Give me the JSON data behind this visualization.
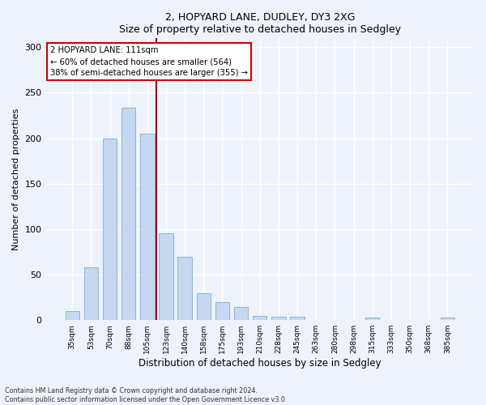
{
  "title1": "2, HOPYARD LANE, DUDLEY, DY3 2XG",
  "title2": "Size of property relative to detached houses in Sedgley",
  "xlabel": "Distribution of detached houses by size in Sedgley",
  "ylabel": "Number of detached properties",
  "categories": [
    "35sqm",
    "53sqm",
    "70sqm",
    "88sqm",
    "105sqm",
    "123sqm",
    "140sqm",
    "158sqm",
    "175sqm",
    "193sqm",
    "210sqm",
    "228sqm",
    "245sqm",
    "263sqm",
    "280sqm",
    "298sqm",
    "315sqm",
    "333sqm",
    "350sqm",
    "368sqm",
    "385sqm"
  ],
  "values": [
    10,
    58,
    200,
    233,
    205,
    95,
    70,
    30,
    20,
    14,
    5,
    4,
    4,
    0,
    0,
    0,
    3,
    0,
    0,
    0,
    3
  ],
  "bar_color": "#c5d8f0",
  "bar_edge_color": "#7aafd4",
  "bar_width": 0.75,
  "ylim": [
    0,
    310
  ],
  "yticks": [
    0,
    50,
    100,
    150,
    200,
    250,
    300
  ],
  "vline_x_index": 4,
  "vline_color": "#990000",
  "annotation_line1": "2 HOPYARD LANE: 111sqm",
  "annotation_line2": "← 60% of detached houses are smaller (564)",
  "annotation_line3": "38% of semi-detached houses are larger (355) →",
  "annotation_box_color": "#ffffff",
  "annotation_box_edge": "#cc0000",
  "background_color": "#eef2fb",
  "grid_color": "#ffffff",
  "footnote": "Contains HM Land Registry data © Crown copyright and database right 2024.\nContains public sector information licensed under the Open Government Licence v3.0."
}
